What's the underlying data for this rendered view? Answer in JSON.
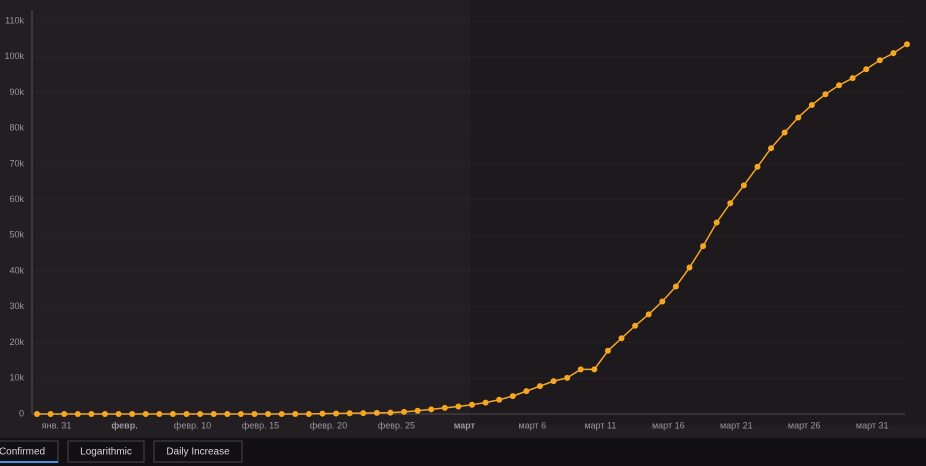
{
  "chart_data": {
    "type": "line",
    "categories": [
      null,
      "янв. 31",
      null,
      null,
      null,
      null,
      "февр.",
      null,
      null,
      null,
      null,
      "февр. 10",
      null,
      null,
      null,
      null,
      "февр. 15",
      null,
      null,
      null,
      null,
      "февр. 20",
      null,
      null,
      null,
      null,
      "февр. 25",
      null,
      null,
      null,
      null,
      "март",
      null,
      null,
      null,
      null,
      "март 6",
      null,
      null,
      null,
      null,
      "март 11",
      null,
      null,
      null,
      null,
      "март 16",
      null,
      null,
      null,
      null,
      "март 21",
      null,
      null,
      null,
      null,
      "март 26",
      null,
      null,
      null,
      null,
      "март 31",
      null,
      null,
      null
    ],
    "values": [
      0,
      0,
      0,
      0,
      0,
      0,
      0,
      0,
      0,
      0,
      0,
      0,
      0,
      0,
      0,
      0,
      0,
      0,
      0,
      0,
      0,
      100,
      150,
      200,
      250,
      300,
      400,
      600,
      900,
      1300,
      1700,
      2100,
      2600,
      3200,
      4000,
      5000,
      6400,
      7800,
      9200,
      10100,
      12500,
      12500,
      17700,
      21200,
      24700,
      27900,
      31500,
      35700,
      41000,
      47000,
      53600,
      59000,
      64000,
      69200,
      74400,
      78800,
      83000,
      86500,
      89500,
      92000,
      94000,
      96500,
      99000,
      101000,
      103500
    ],
    "color": "#f5a623",
    "ylim": [
      0,
      110000
    ],
    "yticks": [
      0,
      {
        "value": 10000,
        "label": "10k"
      },
      {
        "value": 20000,
        "label": "20k"
      },
      {
        "value": 30000,
        "label": "30k"
      },
      {
        "value": 40000,
        "label": "40k"
      },
      {
        "value": 50000,
        "label": "50k"
      },
      {
        "value": 60000,
        "label": "60k"
      },
      {
        "value": 70000,
        "label": "70k"
      },
      {
        "value": 80000,
        "label": "80k"
      },
      {
        "value": 90000,
        "label": "90k"
      },
      {
        "value": 100000,
        "label": "100k"
      },
      {
        "value": 110000,
        "label": "110k"
      }
    ],
    "grid": true
  },
  "tabs": [
    "Confirmed",
    "Logarithmic",
    "Daily Increase"
  ]
}
